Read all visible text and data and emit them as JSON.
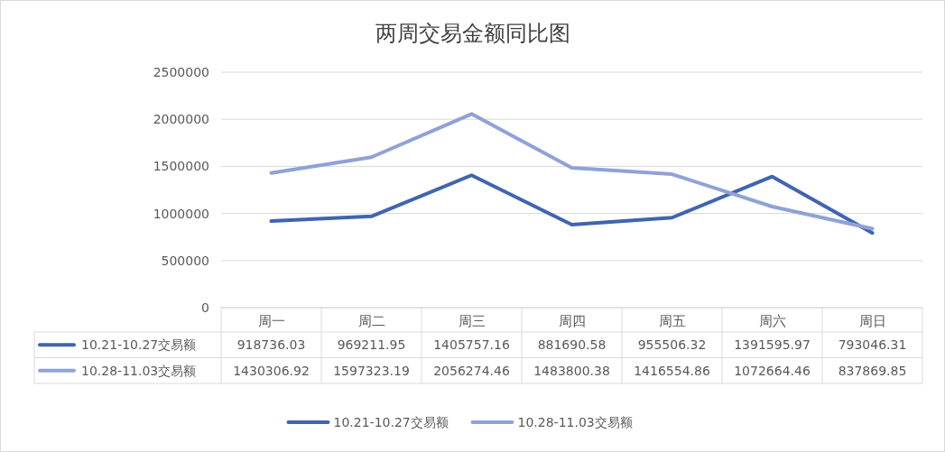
{
  "chart_data": {
    "type": "line",
    "title": "两周交易金额同比图",
    "categories": [
      "周一",
      "周二",
      "周三",
      "周四",
      "周五",
      "周六",
      "周日"
    ],
    "series": [
      {
        "name": "10.21-10.27交易额",
        "color": "#3f65b0",
        "values": [
          918736.03,
          969211.95,
          1405757.16,
          881690.58,
          955506.32,
          1391595.97,
          793046.31
        ]
      },
      {
        "name": "10.28-11.03交易额",
        "color": "#8fa2d6",
        "values": [
          1430306.92,
          1597323.19,
          2056274.46,
          1483800.38,
          1416554.86,
          1072664.46,
          837869.85
        ]
      }
    ],
    "ylim": [
      0,
      2500000
    ],
    "yticks": [
      0,
      500000,
      1000000,
      1500000,
      2000000,
      2500000
    ],
    "grid": "y",
    "legend": "bottom",
    "data_labels": true
  }
}
